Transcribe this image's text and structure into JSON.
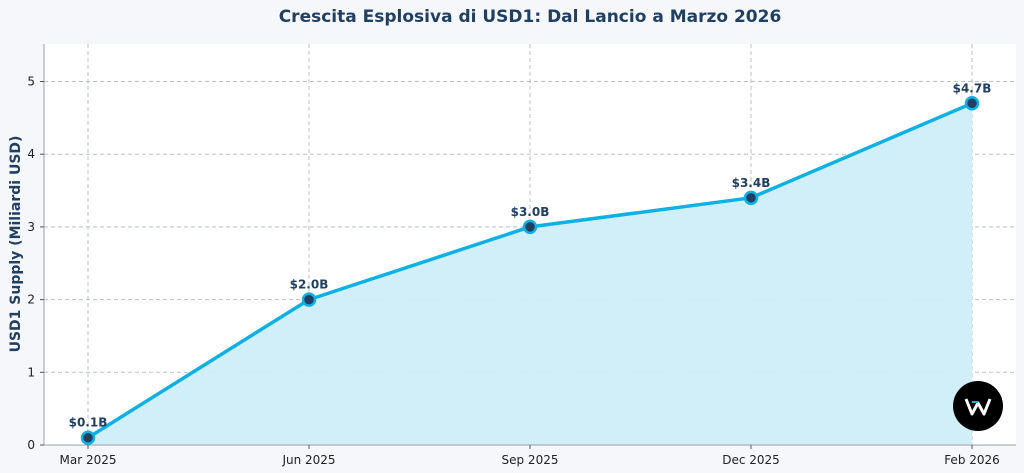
{
  "chart_data": {
    "type": "area",
    "title": "Crescita Esplosiva di USD1: Dal Lancio a Marzo 2026",
    "xlabel": "",
    "ylabel": "USD1 Supply (Miliardi USD)",
    "categories": [
      "Mar 2025",
      "Jun 2025",
      "Sep 2025",
      "Dec 2025",
      "Feb 2026"
    ],
    "values": [
      0.1,
      2.0,
      3.0,
      3.4,
      4.7
    ],
    "data_labels": [
      "$0.1B",
      "$2.0B",
      "$3.0B",
      "$3.4B",
      "$4.7B"
    ],
    "ylim": [
      0,
      5.5
    ],
    "yticks": [
      "0",
      "1",
      "2",
      "3",
      "4",
      "5"
    ],
    "grid": true,
    "colors": {
      "line": "#0fb0e3",
      "fill": "#cdeef9",
      "marker": "#1f3f63",
      "text": "#1f3f63"
    }
  },
  "logo": {
    "icon": "w-logo-icon",
    "bg": "#000000"
  }
}
